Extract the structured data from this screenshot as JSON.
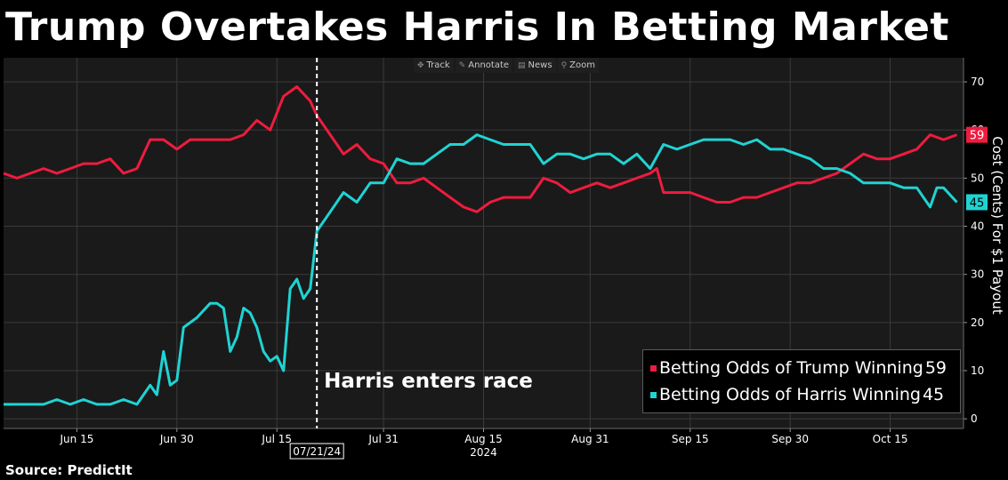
{
  "headline": "Trump Overtakes Harris In Betting Market",
  "source": "Source: PredictIt",
  "toolbar": {
    "track": "Track",
    "annotate": "Annotate",
    "news": "News",
    "zoom": "Zoom"
  },
  "colors": {
    "background": "#000000",
    "plot_background": "#1a1a1a",
    "trump": "#ee1c3f",
    "harris": "#20d3d3",
    "grid": "#3a3a3a"
  },
  "chart_data": {
    "type": "line",
    "title": "Trump Overtakes Harris In Betting Market",
    "ylabel": "Cost (Cents) For $1 Payout",
    "xlabel": "",
    "ylim": [
      -2,
      75
    ],
    "yticks": [
      0,
      10,
      20,
      30,
      40,
      50,
      60,
      70
    ],
    "xlim": [
      "2024-06-04",
      "2024-10-26"
    ],
    "xticks": [
      {
        "date": "2024-06-15",
        "label": "Jun 15"
      },
      {
        "date": "2024-06-30",
        "label": "Jun 30"
      },
      {
        "date": "2024-07-15",
        "label": "Jul 15"
      },
      {
        "date": "2024-07-31",
        "label": "Jul 31"
      },
      {
        "date": "2024-08-15",
        "label": "Aug 15"
      },
      {
        "date": "2024-08-31",
        "label": "Aug 31"
      },
      {
        "date": "2024-09-15",
        "label": "Sep 15"
      },
      {
        "date": "2024-09-30",
        "label": "Sep 30"
      },
      {
        "date": "2024-10-15",
        "label": "Oct 15"
      }
    ],
    "year_label": "2024",
    "year_label_date": "2024-08-15",
    "grid": true,
    "legend_position": "bottom-right",
    "series": [
      {
        "name": "Betting Odds of Trump Winning",
        "last_value": 59,
        "color": "#ee1c3f",
        "points": [
          [
            "2024-06-04",
            51
          ],
          [
            "2024-06-06",
            50
          ],
          [
            "2024-06-08",
            51
          ],
          [
            "2024-06-10",
            52
          ],
          [
            "2024-06-12",
            51
          ],
          [
            "2024-06-14",
            52
          ],
          [
            "2024-06-16",
            53
          ],
          [
            "2024-06-18",
            53
          ],
          [
            "2024-06-20",
            54
          ],
          [
            "2024-06-22",
            51
          ],
          [
            "2024-06-24",
            52
          ],
          [
            "2024-06-26",
            58
          ],
          [
            "2024-06-28",
            58
          ],
          [
            "2024-06-30",
            56
          ],
          [
            "2024-07-02",
            58
          ],
          [
            "2024-07-04",
            58
          ],
          [
            "2024-07-06",
            58
          ],
          [
            "2024-07-08",
            58
          ],
          [
            "2024-07-10",
            59
          ],
          [
            "2024-07-12",
            62
          ],
          [
            "2024-07-14",
            60
          ],
          [
            "2024-07-16",
            67
          ],
          [
            "2024-07-18",
            69
          ],
          [
            "2024-07-20",
            66
          ],
          [
            "2024-07-21",
            63
          ],
          [
            "2024-07-22",
            61
          ],
          [
            "2024-07-23",
            59
          ],
          [
            "2024-07-25",
            55
          ],
          [
            "2024-07-27",
            57
          ],
          [
            "2024-07-29",
            54
          ],
          [
            "2024-07-31",
            53
          ],
          [
            "2024-08-02",
            49
          ],
          [
            "2024-08-04",
            49
          ],
          [
            "2024-08-06",
            50
          ],
          [
            "2024-08-08",
            48
          ],
          [
            "2024-08-10",
            46
          ],
          [
            "2024-08-12",
            44
          ],
          [
            "2024-08-14",
            43
          ],
          [
            "2024-08-16",
            45
          ],
          [
            "2024-08-18",
            46
          ],
          [
            "2024-08-20",
            46
          ],
          [
            "2024-08-22",
            46
          ],
          [
            "2024-08-24",
            50
          ],
          [
            "2024-08-26",
            49
          ],
          [
            "2024-08-28",
            47
          ],
          [
            "2024-08-30",
            48
          ],
          [
            "2024-09-01",
            49
          ],
          [
            "2024-09-03",
            48
          ],
          [
            "2024-09-05",
            49
          ],
          [
            "2024-09-07",
            50
          ],
          [
            "2024-09-09",
            51
          ],
          [
            "2024-09-10",
            52
          ],
          [
            "2024-09-11",
            47
          ],
          [
            "2024-09-13",
            47
          ],
          [
            "2024-09-15",
            47
          ],
          [
            "2024-09-17",
            46
          ],
          [
            "2024-09-19",
            45
          ],
          [
            "2024-09-21",
            45
          ],
          [
            "2024-09-23",
            46
          ],
          [
            "2024-09-25",
            46
          ],
          [
            "2024-09-27",
            47
          ],
          [
            "2024-09-29",
            48
          ],
          [
            "2024-10-01",
            49
          ],
          [
            "2024-10-03",
            49
          ],
          [
            "2024-10-05",
            50
          ],
          [
            "2024-10-07",
            51
          ],
          [
            "2024-10-09",
            53
          ],
          [
            "2024-10-11",
            55
          ],
          [
            "2024-10-13",
            54
          ],
          [
            "2024-10-15",
            54
          ],
          [
            "2024-10-17",
            55
          ],
          [
            "2024-10-19",
            56
          ],
          [
            "2024-10-21",
            59
          ],
          [
            "2024-10-23",
            58
          ],
          [
            "2024-10-25",
            59
          ]
        ]
      },
      {
        "name": "Betting Odds of Harris Winning",
        "last_value": 45,
        "color": "#20d3d3",
        "points": [
          [
            "2024-06-04",
            3
          ],
          [
            "2024-06-06",
            3
          ],
          [
            "2024-06-08",
            3
          ],
          [
            "2024-06-10",
            3
          ],
          [
            "2024-06-12",
            4
          ],
          [
            "2024-06-14",
            3
          ],
          [
            "2024-06-16",
            4
          ],
          [
            "2024-06-18",
            3
          ],
          [
            "2024-06-20",
            3
          ],
          [
            "2024-06-22",
            4
          ],
          [
            "2024-06-24",
            3
          ],
          [
            "2024-06-26",
            7
          ],
          [
            "2024-06-27",
            5
          ],
          [
            "2024-06-28",
            14
          ],
          [
            "2024-06-29",
            7
          ],
          [
            "2024-06-30",
            8
          ],
          [
            "2024-07-01",
            19
          ],
          [
            "2024-07-03",
            21
          ],
          [
            "2024-07-05",
            24
          ],
          [
            "2024-07-06",
            24
          ],
          [
            "2024-07-07",
            23
          ],
          [
            "2024-07-08",
            14
          ],
          [
            "2024-07-09",
            17
          ],
          [
            "2024-07-10",
            23
          ],
          [
            "2024-07-11",
            22
          ],
          [
            "2024-07-12",
            19
          ],
          [
            "2024-07-13",
            14
          ],
          [
            "2024-07-14",
            12
          ],
          [
            "2024-07-15",
            13
          ],
          [
            "2024-07-16",
            10
          ],
          [
            "2024-07-17",
            27
          ],
          [
            "2024-07-18",
            29
          ],
          [
            "2024-07-19",
            25
          ],
          [
            "2024-07-20",
            27
          ],
          [
            "2024-07-21",
            39
          ],
          [
            "2024-07-23",
            43
          ],
          [
            "2024-07-25",
            47
          ],
          [
            "2024-07-27",
            45
          ],
          [
            "2024-07-29",
            49
          ],
          [
            "2024-07-31",
            49
          ],
          [
            "2024-08-02",
            54
          ],
          [
            "2024-08-04",
            53
          ],
          [
            "2024-08-06",
            53
          ],
          [
            "2024-08-08",
            55
          ],
          [
            "2024-08-10",
            57
          ],
          [
            "2024-08-12",
            57
          ],
          [
            "2024-08-14",
            59
          ],
          [
            "2024-08-16",
            58
          ],
          [
            "2024-08-18",
            57
          ],
          [
            "2024-08-20",
            57
          ],
          [
            "2024-08-22",
            57
          ],
          [
            "2024-08-24",
            53
          ],
          [
            "2024-08-26",
            55
          ],
          [
            "2024-08-28",
            55
          ],
          [
            "2024-08-30",
            54
          ],
          [
            "2024-09-01",
            55
          ],
          [
            "2024-09-03",
            55
          ],
          [
            "2024-09-05",
            53
          ],
          [
            "2024-09-07",
            55
          ],
          [
            "2024-09-09",
            52
          ],
          [
            "2024-09-11",
            57
          ],
          [
            "2024-09-13",
            56
          ],
          [
            "2024-09-15",
            57
          ],
          [
            "2024-09-17",
            58
          ],
          [
            "2024-09-19",
            58
          ],
          [
            "2024-09-21",
            58
          ],
          [
            "2024-09-23",
            57
          ],
          [
            "2024-09-25",
            58
          ],
          [
            "2024-09-27",
            56
          ],
          [
            "2024-09-29",
            56
          ],
          [
            "2024-10-01",
            55
          ],
          [
            "2024-10-03",
            54
          ],
          [
            "2024-10-05",
            52
          ],
          [
            "2024-10-07",
            52
          ],
          [
            "2024-10-09",
            51
          ],
          [
            "2024-10-11",
            49
          ],
          [
            "2024-10-13",
            49
          ],
          [
            "2024-10-15",
            49
          ],
          [
            "2024-10-17",
            48
          ],
          [
            "2024-10-19",
            48
          ],
          [
            "2024-10-20",
            46
          ],
          [
            "2024-10-21",
            44
          ],
          [
            "2024-10-22",
            48
          ],
          [
            "2024-10-23",
            48
          ],
          [
            "2024-10-25",
            45
          ]
        ]
      }
    ],
    "annotations": [
      {
        "type": "vline",
        "date": "2024-07-21",
        "label": "Harris enters race",
        "date_label": "07/21/24"
      }
    ]
  }
}
